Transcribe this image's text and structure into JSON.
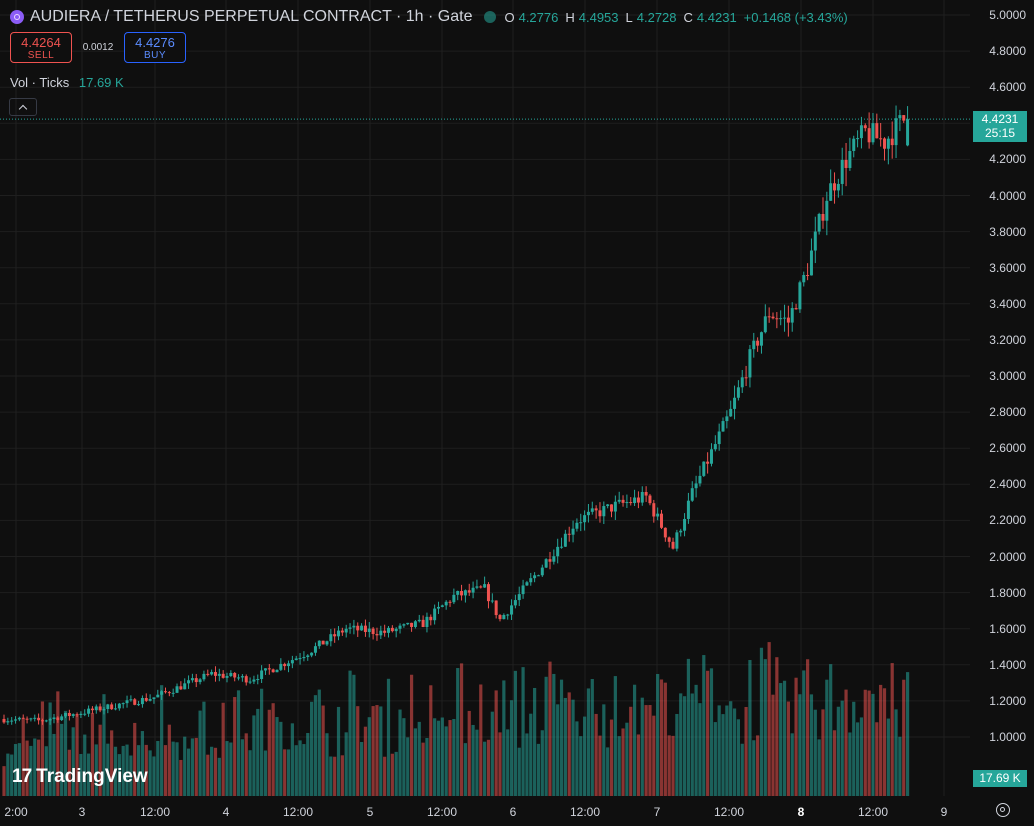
{
  "header": {
    "title": "AUDIERA / TETHERUS PERPETUAL CONTRACT · 1h · Gate",
    "coin_icon": "audiera-coin-icon",
    "ohlc": {
      "o_label": "O",
      "o": "4.2776",
      "h_label": "H",
      "h": "4.4953",
      "l_label": "L",
      "l": "4.2728",
      "c_label": "C",
      "c": "4.4231",
      "change": "+0.1468 (+3.43%)"
    }
  },
  "trade": {
    "sell_price": "4.4264",
    "sell_label": "SELL",
    "spread": "0.0012",
    "buy_price": "4.4276",
    "buy_label": "BUY"
  },
  "volume_legend": {
    "label": "Vol · Ticks",
    "value": "17.69 K"
  },
  "price_axis": [
    "5.0000",
    "4.8000",
    "4.6000",
    "4.4000",
    "4.2000",
    "4.0000",
    "3.8000",
    "3.6000",
    "3.4000",
    "3.2000",
    "3.0000",
    "2.8000",
    "2.6000",
    "2.4000",
    "2.2000",
    "2.0000",
    "1.8000",
    "1.6000",
    "1.4000",
    "1.2000",
    "1.0000"
  ],
  "time_axis": [
    "2:00",
    "3",
    "12:00",
    "4",
    "12:00",
    "5",
    "12:00",
    "6",
    "12:00",
    "7",
    "12:00",
    "8",
    "12:00",
    "9"
  ],
  "last_price": {
    "price": "4.4231",
    "countdown": "25:15"
  },
  "last_volume": "17.69 K",
  "logo": {
    "mark": "17",
    "text": "TradingView"
  },
  "colors": {
    "up": "#26a69a",
    "down": "#ef5350",
    "background": "#0f0f0f",
    "grid": "#1f1f1f"
  },
  "chart_data": {
    "type": "candlestick",
    "interval": "1h",
    "ylim": [
      1.0,
      5.0
    ],
    "anchors": [
      {
        "t": 0,
        "p": 1.1
      },
      {
        "t": 10,
        "p": 1.09
      },
      {
        "t": 20,
        "p": 1.13
      },
      {
        "t": 40,
        "p": 1.22
      },
      {
        "t": 55,
        "p": 1.35
      },
      {
        "t": 65,
        "p": 1.32
      },
      {
        "t": 80,
        "p": 1.47
      },
      {
        "t": 90,
        "p": 1.6
      },
      {
        "t": 100,
        "p": 1.58
      },
      {
        "t": 110,
        "p": 1.63
      },
      {
        "t": 118,
        "p": 1.78
      },
      {
        "t": 126,
        "p": 1.82
      },
      {
        "t": 130,
        "p": 1.65
      },
      {
        "t": 140,
        "p": 1.92
      },
      {
        "t": 150,
        "p": 2.2
      },
      {
        "t": 160,
        "p": 2.28
      },
      {
        "t": 168,
        "p": 2.33
      },
      {
        "t": 175,
        "p": 2.05
      },
      {
        "t": 180,
        "p": 2.35
      },
      {
        "t": 190,
        "p": 2.8
      },
      {
        "t": 195,
        "p": 3.1
      },
      {
        "t": 200,
        "p": 3.35
      },
      {
        "t": 205,
        "p": 3.3
      },
      {
        "t": 210,
        "p": 3.6
      },
      {
        "t": 215,
        "p": 4.0
      },
      {
        "t": 220,
        "p": 4.2
      },
      {
        "t": 225,
        "p": 4.35
      },
      {
        "t": 230,
        "p": 4.3
      },
      {
        "t": 235,
        "p": 4.42
      }
    ],
    "last_candle": {
      "open": 4.2776,
      "high": 4.4953,
      "low": 4.2728,
      "close": 4.4231
    }
  }
}
